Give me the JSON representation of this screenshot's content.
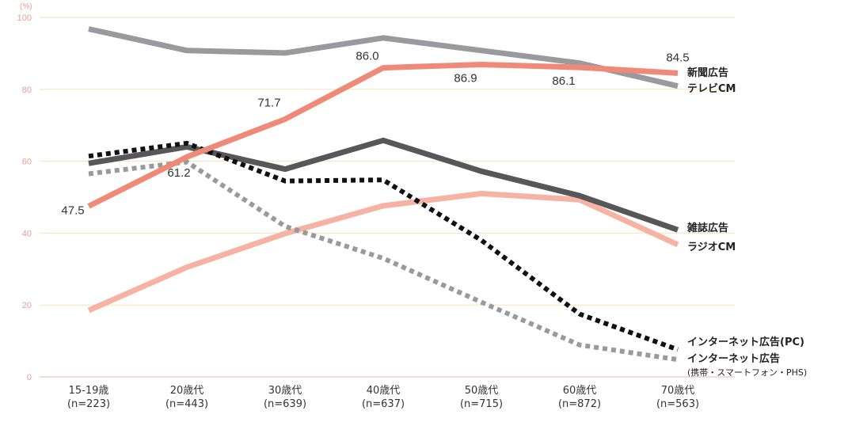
{
  "chart_data": {
    "type": "line",
    "y_unit": "(%)",
    "ylim": [
      0,
      100
    ],
    "yticks": [
      0,
      20,
      40,
      60,
      80,
      100
    ],
    "grid": true,
    "categories": [
      {
        "label": "15-19歳",
        "n": "(n=223)"
      },
      {
        "label": "20歳代",
        "n": "(n=443)"
      },
      {
        "label": "30歳代",
        "n": "(n=639)"
      },
      {
        "label": "40歳代",
        "n": "(n=637)"
      },
      {
        "label": "50歳代",
        "n": "(n=715)"
      },
      {
        "label": "60歳代",
        "n": "(n=872)"
      },
      {
        "label": "70歳代",
        "n": "(n=563)"
      }
    ],
    "series": [
      {
        "name": "テレビCM",
        "values": [
          96.8,
          90.8,
          90.1,
          94.3,
          90.8,
          87.3,
          80.9
        ],
        "color": "#9a999e",
        "dash": "solid"
      },
      {
        "name": "ラジオCM",
        "values": [
          18.5,
          30.5,
          39.9,
          47.6,
          51.0,
          49.3,
          36.8
        ],
        "color": "#f6b3a4",
        "dash": "solid"
      },
      {
        "name": "雑誌広告",
        "values": [
          59.4,
          64.0,
          57.8,
          65.8,
          57.2,
          50.4,
          40.9
        ],
        "color": "#575759",
        "dash": "solid"
      },
      {
        "name": "インターネット広告(携帯・スマートフォン・PHS)",
        "values": [
          56.5,
          59.8,
          41.9,
          33.0,
          20.8,
          8.9,
          4.8
        ],
        "color": "#9a999e",
        "dash": "dotted"
      },
      {
        "name": "インターネット広告(PC)",
        "values": [
          61.4,
          65.0,
          54.5,
          54.8,
          38.0,
          17.5,
          7.6
        ],
        "color": "#111111",
        "dash": "dotted"
      },
      {
        "name": "新聞広告",
        "values": [
          47.5,
          61.2,
          71.7,
          86.0,
          86.9,
          86.1,
          84.5
        ],
        "color": "#ef8a79",
        "dash": "solid"
      }
    ],
    "data_labels": [
      "47.5",
      "61.2",
      "71.7",
      "86.0",
      "86.9",
      "86.1",
      "84.5"
    ],
    "series_labels": {
      "shinbun": "新聞広告",
      "tv": "テレビCM",
      "zasshi": "雑誌広告",
      "radio": "ラジオCM",
      "net_pc": "インターネット広告(PC)",
      "net_mobile": "インターネット広告",
      "net_mobile_sub": "(携帯・スマートフォン・PHS)"
    }
  }
}
